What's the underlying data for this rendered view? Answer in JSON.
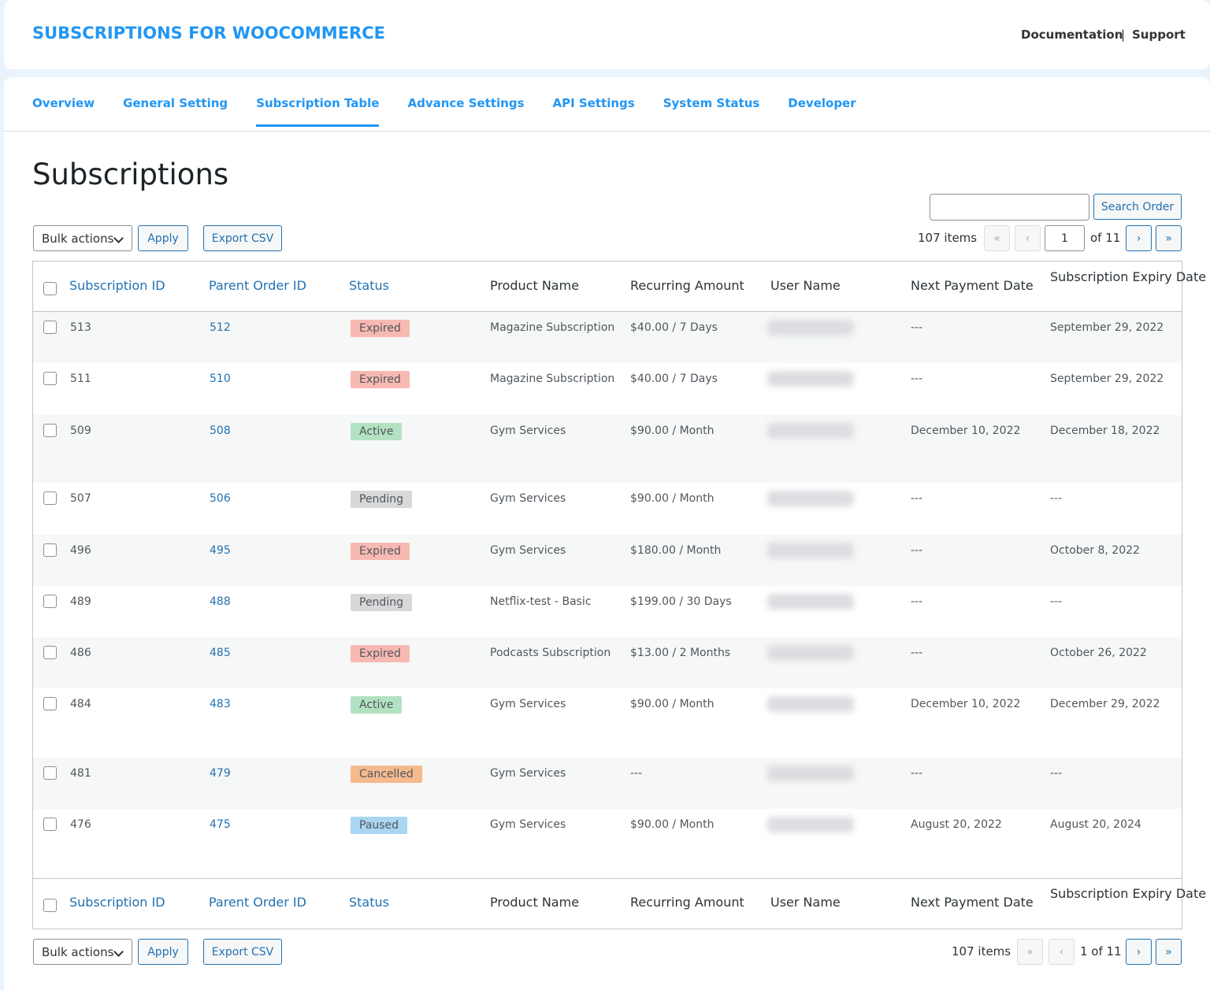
{
  "header": {
    "title": "SUBSCRIPTIONS FOR WOOCOMMERCE",
    "links": [
      "Documentation",
      "|",
      "Support"
    ]
  },
  "tabs": [
    {
      "label": "Overview",
      "active": false
    },
    {
      "label": "General Setting",
      "active": false
    },
    {
      "label": "Subscription Table",
      "active": true
    },
    {
      "label": "Advance Settings",
      "active": false
    },
    {
      "label": "API Settings",
      "active": false
    },
    {
      "label": "System Status",
      "active": false
    },
    {
      "label": "Developer",
      "active": false
    }
  ],
  "page_title": "Subscriptions",
  "actions": {
    "bulk": "Bulk actions",
    "apply": "Apply",
    "export": "Export CSV",
    "search_button": "Search Order"
  },
  "pagination_top": {
    "items": "107 items",
    "first": "«",
    "prev": "‹",
    "current": "1",
    "total": "of 11",
    "next": "›",
    "last": "»"
  },
  "pagination_bottom": {
    "items": "107 items",
    "first": "«",
    "prev": "‹",
    "status": "1 of 11",
    "next": "›",
    "last": "»"
  },
  "columns": [
    {
      "label": "Subscription ID",
      "sortable": true
    },
    {
      "label": "Parent Order ID",
      "sortable": true
    },
    {
      "label": "Status",
      "sortable": true
    },
    {
      "label": "Product Name",
      "sortable": false
    },
    {
      "label": "Recurring Amount",
      "sortable": false
    },
    {
      "label": "User Name",
      "sortable": false
    },
    {
      "label": "Next Payment Date",
      "sortable": false
    },
    {
      "label": "Subscription Expiry Date",
      "sortable": false
    }
  ],
  "rows": [
    {
      "id": "513",
      "parent": "512",
      "status": {
        "label": "Expired",
        "color": "#f7b9b2"
      },
      "product": "Magazine Subscription",
      "amount": "$40.00 / 7 Days",
      "next": "---",
      "expiry": "September 29, 2022"
    },
    {
      "id": "511",
      "parent": "510",
      "status": {
        "label": "Expired",
        "color": "#f7b9b2"
      },
      "product": "Magazine Subscription",
      "amount": "$40.00 / 7 Days",
      "next": "---",
      "expiry": "September 29, 2022"
    },
    {
      "id": "509",
      "parent": "508",
      "status": {
        "label": "Active",
        "color": "#b3e2c2"
      },
      "product": "Gym Services",
      "amount": "$90.00 / Month",
      "next": "December 10, 2022",
      "expiry": "December 18, 2022"
    },
    {
      "id": "507",
      "parent": "506",
      "status": {
        "label": "Pending",
        "color": "#d8d8d8"
      },
      "product": "Gym Services",
      "amount": "$90.00 / Month",
      "next": "---",
      "expiry": "---"
    },
    {
      "id": "496",
      "parent": "495",
      "status": {
        "label": "Expired",
        "color": "#f7b9b2"
      },
      "product": "Gym Services",
      "amount": "$180.00 / Month",
      "next": "---",
      "expiry": "October 8, 2022"
    },
    {
      "id": "489",
      "parent": "488",
      "status": {
        "label": "Pending",
        "color": "#d8d8d8"
      },
      "product": "Netflix-test - Basic",
      "amount": "$199.00 / 30 Days",
      "next": "---",
      "expiry": "---"
    },
    {
      "id": "486",
      "parent": "485",
      "status": {
        "label": "Expired",
        "color": "#f7b9b2"
      },
      "product": "Podcasts Subscription",
      "amount": "$13.00 / 2 Months",
      "next": "---",
      "expiry": "October 26, 2022"
    },
    {
      "id": "484",
      "parent": "483",
      "status": {
        "label": "Active",
        "color": "#b3e2c2"
      },
      "product": "Gym Services",
      "amount": "$90.00 / Month",
      "next": "December 10, 2022",
      "expiry": "December 29, 2022"
    },
    {
      "id": "481",
      "parent": "479",
      "status": {
        "label": "Cancelled",
        "color": "#f5b98e"
      },
      "product": "Gym Services",
      "amount": "---",
      "next": "---",
      "expiry": "---"
    },
    {
      "id": "476",
      "parent": "475",
      "status": {
        "label": "Paused",
        "color": "#a9d6f2"
      },
      "product": "Gym Services",
      "amount": "$90.00 / Month",
      "next": "August 20, 2022",
      "expiry": "August 20, 2024"
    }
  ]
}
